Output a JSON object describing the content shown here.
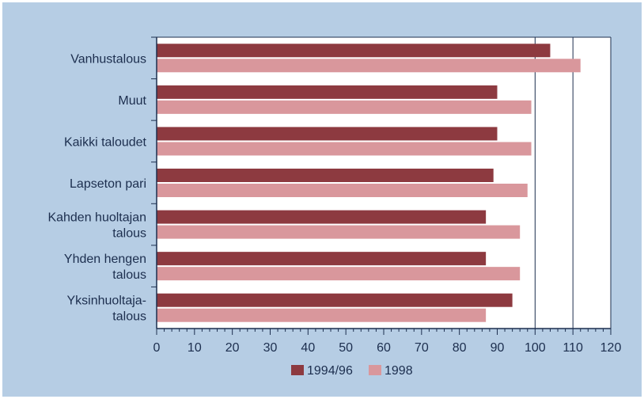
{
  "chart_data": {
    "type": "bar",
    "orientation": "horizontal",
    "categories": [
      [
        "Vanhustalous"
      ],
      [
        "Muut"
      ],
      [
        "Kaikki taloudet"
      ],
      [
        "Lapseton pari"
      ],
      [
        "Kahden huoltajan",
        "talous"
      ],
      [
        "Yhden hengen",
        "talous"
      ],
      [
        "Yksinhuoltaja-",
        "talous"
      ]
    ],
    "series": [
      {
        "name": "1994/96",
        "values": [
          104,
          90,
          90,
          89,
          87,
          87,
          94
        ]
      },
      {
        "name": "1998",
        "values": [
          112,
          99,
          99,
          98,
          96,
          96,
          87
        ]
      }
    ],
    "xlim": [
      0,
      120
    ],
    "xticks": [
      "0",
      "10",
      "20",
      "30",
      "40",
      "50",
      "60",
      "70",
      "80",
      "90",
      "100",
      "110",
      "120"
    ],
    "grid": "vertical lines at 100 and 110",
    "legend": "bottom-center",
    "colors": {
      "background": "#b6cde4",
      "plot_area": "#ffffff",
      "series": [
        "#8d3a40",
        "#d9979c"
      ],
      "text": "#1c2e4e",
      "axis": "#1c2e4e"
    }
  }
}
